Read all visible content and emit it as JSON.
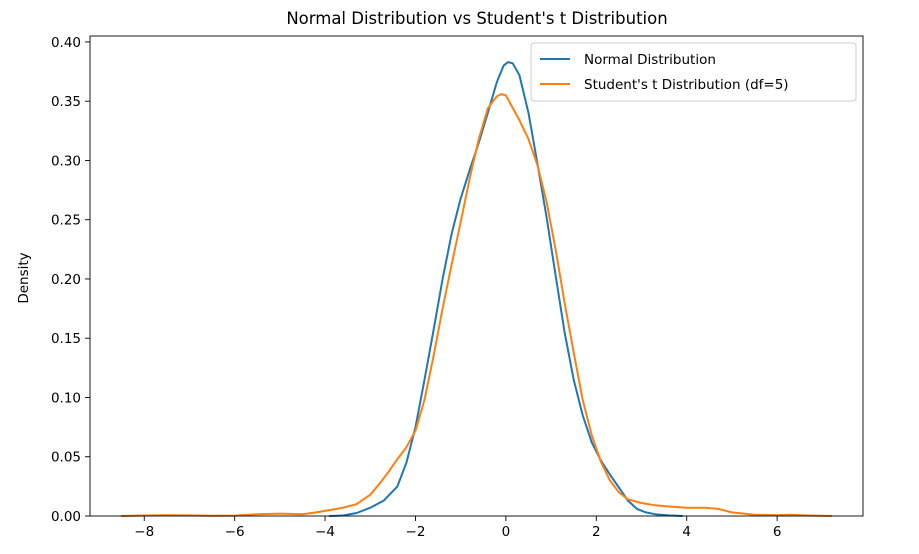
{
  "chart_data": {
    "type": "line",
    "title": "Normal Distribution vs Student's t Distribution",
    "xlabel": "",
    "ylabel": "Density",
    "xlim": [
      -9.2,
      7.9
    ],
    "ylim": [
      0,
      0.405
    ],
    "xticks": [
      -8,
      -6,
      -4,
      -2,
      0,
      2,
      4,
      6
    ],
    "xtick_labels": [
      "−8",
      "−6",
      "−4",
      "−2",
      "0",
      "2",
      "4",
      "6"
    ],
    "yticks": [
      0.0,
      0.05,
      0.1,
      0.15,
      0.2,
      0.25,
      0.3,
      0.35,
      0.4
    ],
    "ytick_labels": [
      "0.00",
      "0.05",
      "0.10",
      "0.15",
      "0.20",
      "0.25",
      "0.30",
      "0.35",
      "0.40"
    ],
    "grid": false,
    "legend_position": "upper-right",
    "series": [
      {
        "name": "Normal Distribution",
        "color": "#1f77b4",
        "points": [
          [
            -3.9,
            0.0
          ],
          [
            -3.6,
            0.0004
          ],
          [
            -3.3,
            0.0025
          ],
          [
            -3.0,
            0.007
          ],
          [
            -2.7,
            0.013
          ],
          [
            -2.4,
            0.025
          ],
          [
            -2.2,
            0.045
          ],
          [
            -2.0,
            0.075
          ],
          [
            -1.8,
            0.115
          ],
          [
            -1.6,
            0.157
          ],
          [
            -1.4,
            0.2
          ],
          [
            -1.2,
            0.238
          ],
          [
            -1.0,
            0.268
          ],
          [
            -0.8,
            0.292
          ],
          [
            -0.6,
            0.315
          ],
          [
            -0.4,
            0.34
          ],
          [
            -0.2,
            0.366
          ],
          [
            -0.05,
            0.38
          ],
          [
            0.05,
            0.383
          ],
          [
            0.15,
            0.382
          ],
          [
            0.3,
            0.372
          ],
          [
            0.5,
            0.34
          ],
          [
            0.7,
            0.297
          ],
          [
            0.9,
            0.252
          ],
          [
            1.1,
            0.203
          ],
          [
            1.3,
            0.155
          ],
          [
            1.5,
            0.115
          ],
          [
            1.7,
            0.085
          ],
          [
            1.9,
            0.062
          ],
          [
            2.1,
            0.047
          ],
          [
            2.3,
            0.035
          ],
          [
            2.5,
            0.024
          ],
          [
            2.7,
            0.013
          ],
          [
            2.9,
            0.006
          ],
          [
            3.1,
            0.003
          ],
          [
            3.3,
            0.0015
          ],
          [
            3.6,
            0.0005
          ],
          [
            3.9,
            0.0
          ]
        ]
      },
      {
        "name": "Student's t Distribution (df=5)",
        "color": "#ff7f0e",
        "points": [
          [
            -8.5,
            0.0
          ],
          [
            -8.0,
            0.0004
          ],
          [
            -7.5,
            0.0008
          ],
          [
            -7.0,
            0.0005
          ],
          [
            -6.5,
            0.0002
          ],
          [
            -6.0,
            0.0003
          ],
          [
            -5.5,
            0.0015
          ],
          [
            -5.0,
            0.002
          ],
          [
            -4.5,
            0.0015
          ],
          [
            -4.2,
            0.003
          ],
          [
            -3.9,
            0.005
          ],
          [
            -3.6,
            0.007
          ],
          [
            -3.3,
            0.01
          ],
          [
            -3.0,
            0.018
          ],
          [
            -2.8,
            0.027
          ],
          [
            -2.6,
            0.037
          ],
          [
            -2.4,
            0.048
          ],
          [
            -2.2,
            0.058
          ],
          [
            -2.0,
            0.072
          ],
          [
            -1.8,
            0.098
          ],
          [
            -1.6,
            0.135
          ],
          [
            -1.4,
            0.175
          ],
          [
            -1.2,
            0.212
          ],
          [
            -1.0,
            0.248
          ],
          [
            -0.8,
            0.285
          ],
          [
            -0.6,
            0.318
          ],
          [
            -0.4,
            0.344
          ],
          [
            -0.2,
            0.354
          ],
          [
            -0.1,
            0.356
          ],
          [
            0.0,
            0.355
          ],
          [
            0.1,
            0.348
          ],
          [
            0.3,
            0.334
          ],
          [
            0.5,
            0.318
          ],
          [
            0.7,
            0.296
          ],
          [
            0.9,
            0.265
          ],
          [
            1.1,
            0.225
          ],
          [
            1.3,
            0.18
          ],
          [
            1.5,
            0.138
          ],
          [
            1.7,
            0.098
          ],
          [
            1.9,
            0.068
          ],
          [
            2.1,
            0.046
          ],
          [
            2.3,
            0.03
          ],
          [
            2.5,
            0.02
          ],
          [
            2.7,
            0.014
          ],
          [
            3.0,
            0.011
          ],
          [
            3.3,
            0.009
          ],
          [
            3.6,
            0.008
          ],
          [
            4.0,
            0.007
          ],
          [
            4.4,
            0.007
          ],
          [
            4.7,
            0.006
          ],
          [
            5.0,
            0.003
          ],
          [
            5.5,
            0.001
          ],
          [
            6.0,
            0.0008
          ],
          [
            6.3,
            0.001
          ],
          [
            6.7,
            0.0004
          ],
          [
            7.2,
            0.0
          ]
        ]
      }
    ]
  }
}
